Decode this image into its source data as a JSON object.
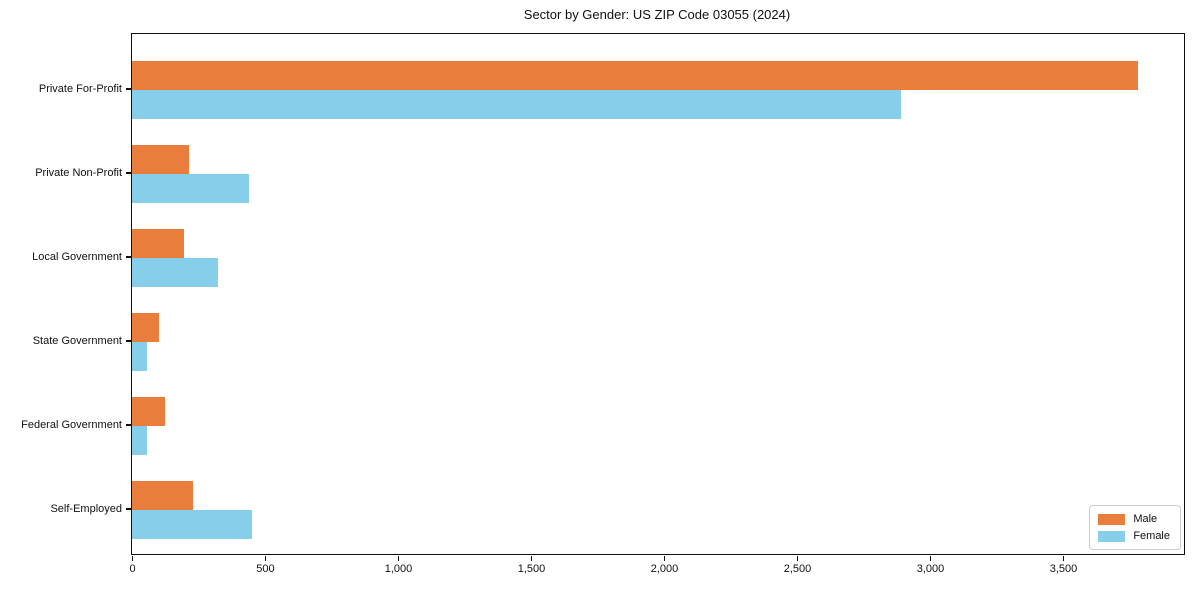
{
  "chart_data": {
    "type": "bar",
    "orientation": "horizontal",
    "title": "Sector by Gender: US ZIP Code 03055 (2024)",
    "categories": [
      "Private For-Profit",
      "Private Non-Profit",
      "Local Government",
      "State Government",
      "Federal Government",
      "Self-Employed"
    ],
    "series": [
      {
        "name": "Male",
        "color": "#e87d3c",
        "values": [
          3780,
          215,
          195,
          100,
          125,
          230
        ]
      },
      {
        "name": "Female",
        "color": "#87ceeb",
        "values": [
          2890,
          440,
          325,
          55,
          55,
          450
        ]
      }
    ],
    "xlim": [
      0,
      3955
    ],
    "xticks": [
      0,
      500,
      1000,
      1500,
      2000,
      2500,
      3000,
      3500
    ],
    "xtick_labels": [
      "0",
      "500",
      "1,000",
      "1,500",
      "2,000",
      "2,500",
      "3,000",
      "3,500"
    ],
    "xlabel": "",
    "ylabel": "",
    "grid": false,
    "legend_position": "lower right"
  }
}
